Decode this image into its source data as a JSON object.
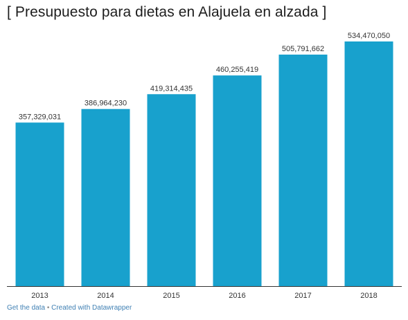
{
  "title": "[ Presupuesto para dietas en Alajuela en alzada ]",
  "footer": {
    "get_data": "Get the data",
    "separator": "•",
    "created_with": "Created with Datawrapper"
  },
  "colors": {
    "bar": "#18a1cd",
    "axis": "#333333",
    "label": "#333333"
  },
  "chart_data": {
    "type": "bar",
    "title": "[ Presupuesto para dietas en Alajuela en alzada ]",
    "categories": [
      "2013",
      "2014",
      "2015",
      "2016",
      "2017",
      "2018"
    ],
    "values": [
      357329031,
      386964230,
      419314435,
      460255419,
      505791662,
      534470050
    ],
    "value_labels": [
      "357,329,031",
      "386,964,230",
      "419,314,435",
      "460,255,419",
      "505,791,662",
      "534,470,050"
    ],
    "xlabel": "",
    "ylabel": "",
    "ylim": [
      0,
      534470050
    ],
    "grid": false,
    "legend": "none"
  }
}
